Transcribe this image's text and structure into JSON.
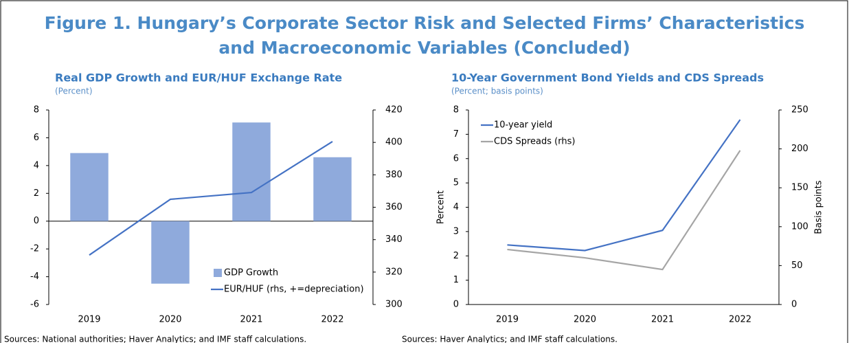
{
  "title": "Figure 1. Hungary’s Corporate Sector Risk and Selected Firms’ Characteristics and Macroeconomic Variables (Concluded)",
  "chart_data": [
    {
      "type": "combo",
      "title": "Real GDP Growth and EUR/HUF Exchange Rate",
      "subtitle": "(Percent)",
      "categories": [
        "2019",
        "2020",
        "2021",
        "2022"
      ],
      "series": [
        {
          "name": "GDP Growth",
          "type": "bar",
          "color": "#8faadc",
          "values": [
            4.9,
            -4.5,
            7.1,
            4.6
          ]
        },
        {
          "name": "EUR/HUF (rhs, +=depreciation)",
          "type": "line",
          "axis": "y2",
          "color": "#4472c4",
          "values": [
            330.5,
            364.9,
            369.1,
            400.5
          ]
        }
      ],
      "ylim": [
        -6,
        8
      ],
      "yticks": [
        -6,
        -4,
        -2,
        0,
        2,
        4,
        6,
        8
      ],
      "y2lim": [
        300,
        420
      ],
      "y2ticks": [
        300,
        320,
        340,
        360,
        380,
        400,
        420
      ],
      "legend": "lower right",
      "grid": false,
      "source": "Sources: National authorities; Haver Analytics; and IMF staff calculations."
    },
    {
      "type": "line",
      "title": "10-Year Government Bond Yields and CDS Spreads",
      "subtitle": "(Percent; basis points)",
      "categories": [
        "2019",
        "2020",
        "2021",
        "2022"
      ],
      "series": [
        {
          "name": "10-year yield",
          "color": "#4472c4",
          "values": [
            2.45,
            2.22,
            3.05,
            7.6
          ]
        },
        {
          "name": "CDS Spreads (rhs)",
          "axis": "y2",
          "color": "#a5a5a5",
          "values": [
            70.7,
            60,
            45,
            198
          ]
        }
      ],
      "ylabel": "Percent",
      "y2label": "Basis points",
      "ylim": [
        0,
        8
      ],
      "yticks": [
        0,
        1,
        2,
        3,
        4,
        5,
        6,
        7,
        8
      ],
      "y2lim": [
        0,
        250
      ],
      "y2ticks": [
        0,
        50,
        100,
        150,
        200,
        250
      ],
      "legend": "upper left",
      "grid": false,
      "source": "Sources: Haver Analytics; and IMF staff calculations."
    }
  ]
}
